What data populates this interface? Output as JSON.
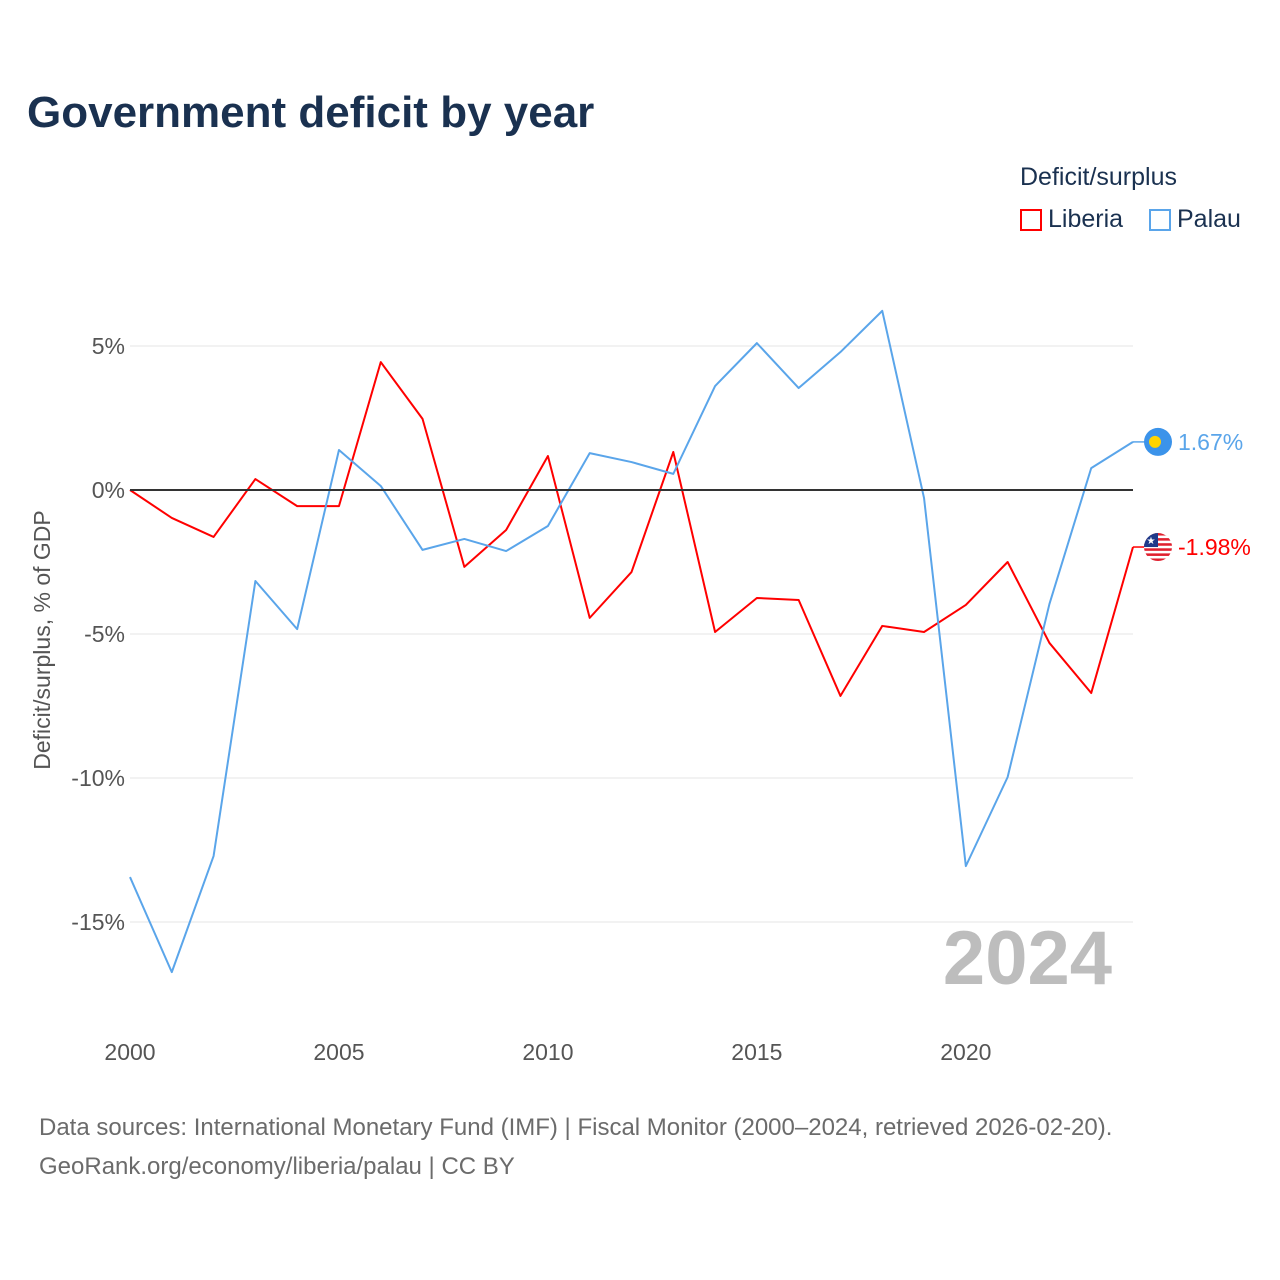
{
  "title": "Government deficit by year",
  "legend": {
    "title": "Deficit/surplus",
    "items": [
      {
        "label": "Liberia",
        "color": "#ff0000"
      },
      {
        "label": "Palau",
        "color": "#5aa5ea"
      }
    ]
  },
  "source": {
    "line1": "Data sources: International Monetary Fund (IMF) | Fiscal Monitor (2000–2024, retrieved 2026-02-20).",
    "line2": "GeoRank.org/economy/liberia/palau | CC BY"
  },
  "chart_data": {
    "type": "line",
    "title": "Government deficit by year",
    "xlabel": "",
    "ylabel": "Deficit/surplus, % of GDP",
    "watermark": "2024",
    "x": [
      2000,
      2001,
      2002,
      2003,
      2004,
      2005,
      2006,
      2007,
      2008,
      2009,
      2010,
      2011,
      2012,
      2013,
      2014,
      2015,
      2016,
      2017,
      2018,
      2019,
      2020,
      2021,
      2022,
      2023,
      2024
    ],
    "xticks": [
      2000,
      2005,
      2010,
      2015,
      2020
    ],
    "xtick_labels": [
      "2000",
      "2005",
      "2010",
      "2015",
      "2020"
    ],
    "yticks": [
      5,
      0,
      -5,
      -10,
      -15
    ],
    "ytick_labels": [
      "5%",
      "0%",
      "-5%",
      "-10%",
      "-15%"
    ],
    "xlim": [
      2000,
      2024
    ],
    "ylim": [
      -18.5,
      7.5
    ],
    "series": [
      {
        "name": "Liberia",
        "color": "#ff0000",
        "end_label": "-1.98%",
        "values": [
          0,
          -0.97,
          -1.63,
          0.38,
          -0.56,
          -0.56,
          4.44,
          2.47,
          -2.67,
          -1.39,
          1.18,
          -4.44,
          -2.85,
          1.32,
          -4.93,
          -3.75,
          -3.82,
          -7.15,
          -4.72,
          -4.93,
          -3.99,
          -2.5,
          -5.31,
          -7.05,
          -1.98
        ]
      },
      {
        "name": "Palau",
        "color": "#5aa5ea",
        "end_label": "1.67%",
        "values": [
          -13.44,
          -16.74,
          -12.71,
          -3.16,
          -4.83,
          1.39,
          0.14,
          -2.08,
          -1.7,
          -2.12,
          -1.25,
          1.28,
          0.97,
          0.56,
          3.61,
          5.1,
          3.54,
          4.79,
          6.22,
          -0.28,
          -13.06,
          -9.97,
          -3.96,
          0.76,
          1.67
        ]
      }
    ]
  }
}
